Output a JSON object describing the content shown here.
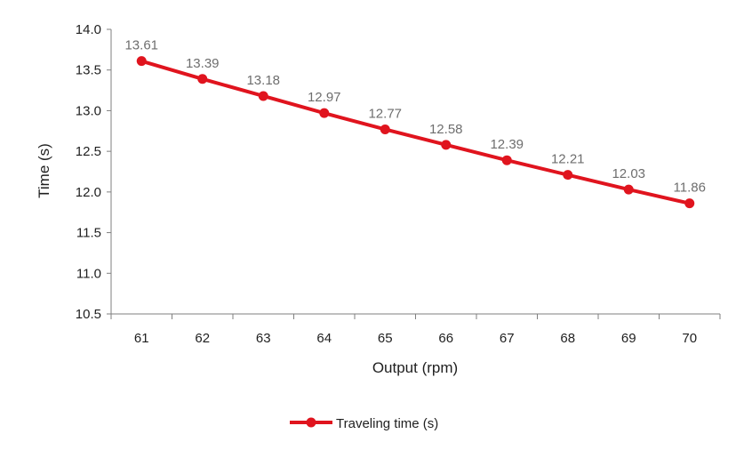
{
  "chart_data": {
    "type": "line",
    "xlabel": "Output (rpm)",
    "ylabel": "Time (s)",
    "x": [
      61,
      62,
      63,
      64,
      65,
      66,
      67,
      68,
      69,
      70
    ],
    "x_tick_labels": [
      "61",
      "62",
      "63",
      "64",
      "65",
      "66",
      "67",
      "68",
      "69",
      "70"
    ],
    "ylim": [
      10.5,
      14.0
    ],
    "y_ticks": [
      10.5,
      11.0,
      11.5,
      12.0,
      12.5,
      13.0,
      13.5,
      14.0
    ],
    "y_tick_labels": [
      "10.5",
      "11.0",
      "11.5",
      "12.0",
      "12.5",
      "13.0",
      "13.5",
      "14.0"
    ],
    "series": [
      {
        "name": "Traveling time (s)",
        "values": [
          13.61,
          13.39,
          13.18,
          12.97,
          12.77,
          12.58,
          12.39,
          12.21,
          12.03,
          11.86
        ],
        "value_labels": [
          "13.61",
          "13.39",
          "13.18",
          "12.97",
          "12.77",
          "12.58",
          "12.39",
          "12.21",
          "12.03",
          "11.86"
        ],
        "color": "#e0141e",
        "markers": true
      }
    ],
    "legend_position": "bottom",
    "grid": false
  },
  "colors": {
    "axis": "#7f7f7f",
    "text": "#1f1f1f",
    "data_label": "#6e6e6e",
    "background": "#ffffff"
  }
}
